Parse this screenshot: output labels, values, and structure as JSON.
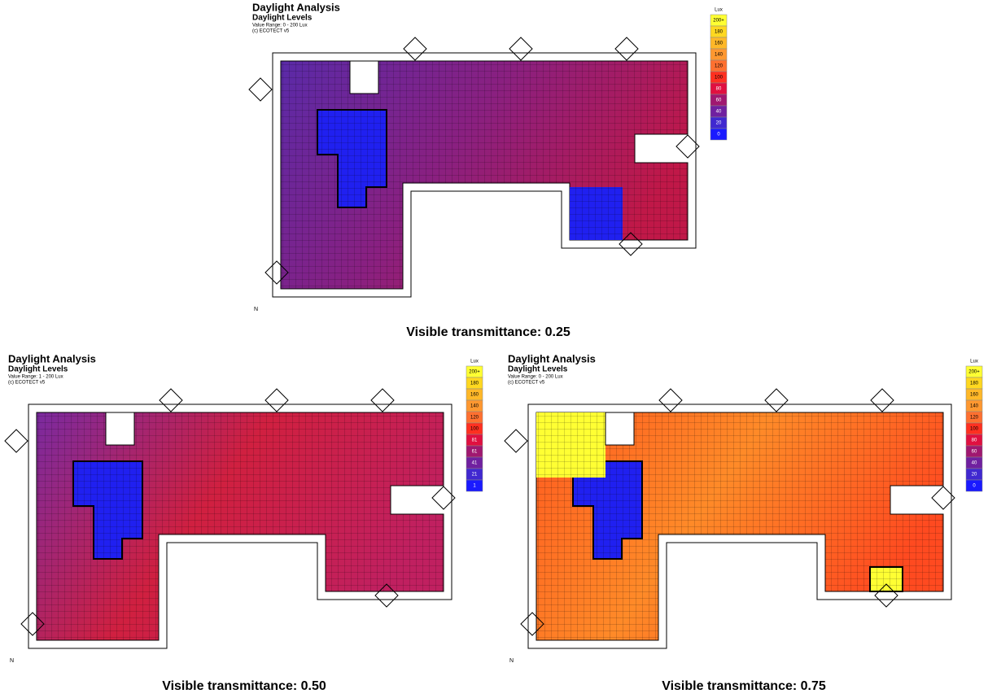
{
  "panels": [
    {
      "title": "Daylight Analysis",
      "subtitle": "Daylight Levels",
      "range": "Value Range: 0 - 200 Lux",
      "copyright": "(c) ECOTECT v5",
      "north": "N",
      "legend": {
        "unit": "Lux",
        "labels": [
          "200+",
          "180",
          "160",
          "140",
          "120",
          "100",
          "80",
          "60",
          "40",
          "20",
          "0"
        ]
      },
      "caption": "Visible transmittance: 0.25"
    },
    {
      "title": "Daylight Analysis",
      "subtitle": "Daylight Levels",
      "range": "Value Range: 1 - 200 Lux",
      "copyright": "(c) ECOTECT v5",
      "north": "N",
      "legend": {
        "unit": "Lux",
        "labels": [
          "200+",
          "180",
          "160",
          "140",
          "120",
          "100",
          "81",
          "61",
          "41",
          "21",
          "1"
        ]
      },
      "caption": "Visible transmittance: 0.50"
    },
    {
      "title": "Daylight Analysis",
      "subtitle": "Daylight Levels",
      "range": "Value Range: 0 - 200 Lux",
      "copyright": "(c) ECOTECT v5",
      "north": "N",
      "legend": {
        "unit": "Lux",
        "labels": [
          "200+",
          "180",
          "160",
          "140",
          "120",
          "100",
          "80",
          "60",
          "40",
          "20",
          "0"
        ]
      },
      "caption": "Visible transmittance: 0.75"
    }
  ],
  "legend_colors": [
    "#ffff33",
    "#ffd820",
    "#ffb828",
    "#ff9830",
    "#ff7030",
    "#ff3020",
    "#e01040",
    "#a01870",
    "#7020a0",
    "#4028d0",
    "#1a1aff"
  ]
}
